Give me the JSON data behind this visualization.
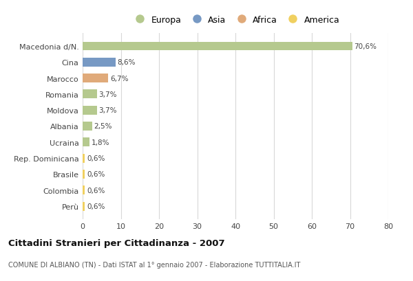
{
  "categories": [
    "Macedonia d/N.",
    "Cina",
    "Marocco",
    "Romania",
    "Moldova",
    "Albania",
    "Ucraina",
    "Rep. Dominicana",
    "Brasile",
    "Colombia",
    "Perù"
  ],
  "values": [
    70.6,
    8.6,
    6.7,
    3.7,
    3.7,
    2.5,
    1.8,
    0.6,
    0.6,
    0.6,
    0.6
  ],
  "labels": [
    "70,6%",
    "8,6%",
    "6,7%",
    "3,7%",
    "3,7%",
    "2,5%",
    "1,8%",
    "0,6%",
    "0,6%",
    "0,6%",
    "0,6%"
  ],
  "colors": [
    "#b5c98e",
    "#7799c4",
    "#e0aa7a",
    "#b5c98e",
    "#b5c98e",
    "#b5c98e",
    "#b5c98e",
    "#f0d060",
    "#f0d060",
    "#f0d060",
    "#f0d060"
  ],
  "legend_labels": [
    "Europa",
    "Asia",
    "Africa",
    "America"
  ],
  "legend_colors": [
    "#b5c98e",
    "#7799c4",
    "#e0aa7a",
    "#f0d060"
  ],
  "title": "Cittadini Stranieri per Cittadinanza - 2007",
  "subtitle": "COMUNE DI ALBIANO (TN) - Dati ISTAT al 1° gennaio 2007 - Elaborazione TUTTITALIA.IT",
  "xlim": [
    0,
    80
  ],
  "xticks": [
    0,
    10,
    20,
    30,
    40,
    50,
    60,
    70,
    80
  ],
  "background_color": "#ffffff",
  "grid_color": "#d8d8d8",
  "bar_height": 0.55
}
